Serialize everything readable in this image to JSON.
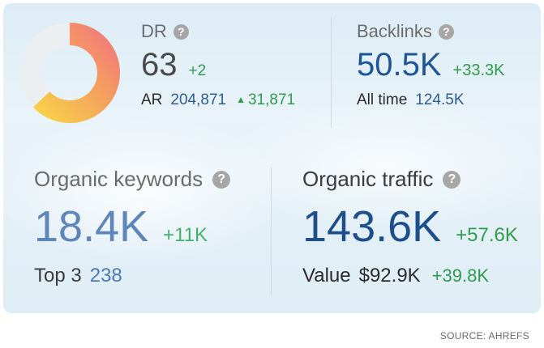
{
  "dr": {
    "label": "DR",
    "value": "63",
    "delta": "+2",
    "score": 63,
    "ar_label": "AR",
    "ar_value": "204,871",
    "ar_delta": "31,871",
    "ring_colors": [
      "#f27a7a",
      "#f5a15d",
      "#f7cf4a",
      "#ebeef1"
    ]
  },
  "backlinks": {
    "label": "Backlinks",
    "value": "50.5K",
    "delta": "+33.3K",
    "sub_label": "All time",
    "sub_value": "124.5K"
  },
  "organic_keywords": {
    "label": "Organic keywords",
    "value": "18.4K",
    "delta": "+11K",
    "sub_label": "Top 3",
    "sub_value": "238"
  },
  "organic_traffic": {
    "label": "Organic traffic",
    "value": "143.6K",
    "delta": "+57.6K",
    "sub_label": "Value",
    "sub_value": "$92.9K",
    "sub_delta": "+39.8K"
  },
  "help_icon_glyph": "?",
  "up_arrow_glyph": "▲",
  "source": "SOURCE: AHREFS",
  "colors": {
    "accent_blue": "#1f5596",
    "positive_green": "#2f9b4e"
  }
}
